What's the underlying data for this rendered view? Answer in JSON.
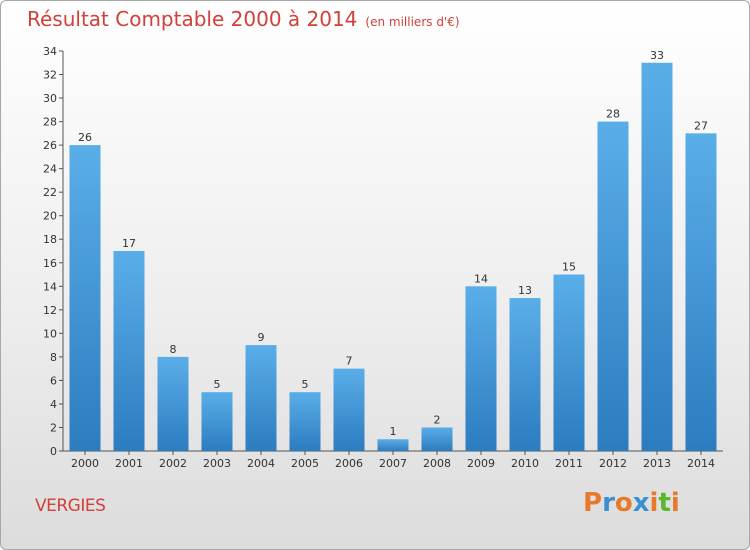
{
  "title": "Résultat Comptable 2000 à 2014",
  "subtitle": "(en milliers d'€)",
  "commune": "VERGIES",
  "logo": {
    "text": "Proxiti",
    "letters": [
      "P",
      "r",
      "o",
      "x",
      "i",
      "t",
      "i"
    ],
    "colors": [
      "#e8792b",
      "#3a8fd0",
      "#e8792b",
      "#3a8fd0",
      "#e8792b",
      "#5ab52f",
      "#e8792b"
    ]
  },
  "colors": {
    "title": "#d2403a",
    "bar": "#3f92d6"
  },
  "chart_data": {
    "type": "bar",
    "categories": [
      "2000",
      "2001",
      "2002",
      "2003",
      "2004",
      "2005",
      "2006",
      "2007",
      "2008",
      "2009",
      "2010",
      "2011",
      "2012",
      "2013",
      "2014"
    ],
    "values": [
      26,
      17,
      8,
      5,
      9,
      5,
      7,
      1,
      2,
      14,
      13,
      15,
      28,
      33,
      27
    ],
    "title": "Résultat Comptable 2000 à 2014",
    "xlabel": "",
    "ylabel": "",
    "ylim": [
      0,
      34
    ],
    "yticks": [
      0,
      2,
      4,
      6,
      8,
      10,
      12,
      14,
      16,
      18,
      20,
      22,
      24,
      26,
      28,
      30,
      32,
      34
    ],
    "grid": false
  }
}
